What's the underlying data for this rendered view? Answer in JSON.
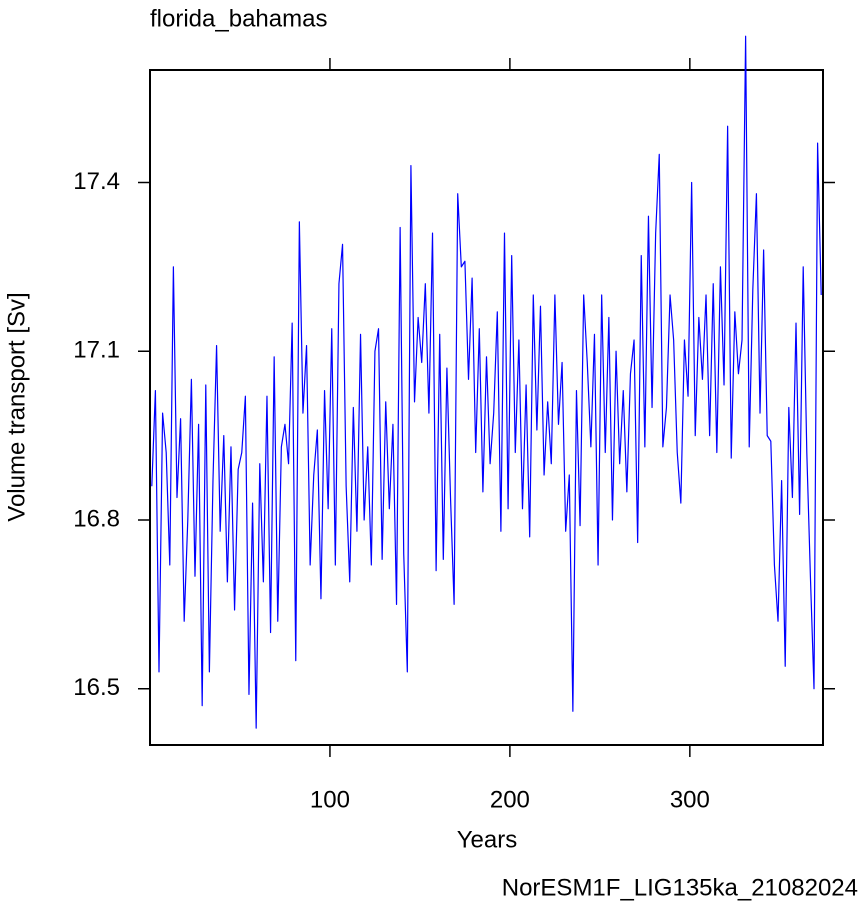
{
  "chart_data": {
    "type": "line",
    "title": "florida_bahamas",
    "x_label": "Years",
    "y_label": "Volume transport [Sv]",
    "annotation": "NorESM1F_LIG135ka_21082024",
    "color": "#0000ff",
    "annotation_color": "#0000ff",
    "xlim": [
      0,
      374
    ],
    "xticks": [
      100,
      200,
      300
    ],
    "ylim": [
      16.4,
      17.6
    ],
    "yticks": [
      16.5,
      16.8,
      17.1,
      17.4
    ],
    "x": [
      1,
      3,
      5,
      7,
      9,
      11,
      13,
      15,
      17,
      19,
      21,
      23,
      25,
      27,
      29,
      31,
      33,
      35,
      37,
      39,
      41,
      43,
      45,
      47,
      49,
      51,
      53,
      55,
      57,
      59,
      61,
      63,
      65,
      67,
      69,
      71,
      73,
      75,
      77,
      79,
      81,
      83,
      85,
      87,
      89,
      91,
      93,
      95,
      97,
      99,
      101,
      103,
      105,
      107,
      109,
      111,
      113,
      115,
      117,
      119,
      121,
      123,
      125,
      127,
      129,
      131,
      133,
      135,
      137,
      139,
      141,
      143,
      145,
      147,
      149,
      151,
      153,
      155,
      157,
      159,
      161,
      163,
      165,
      167,
      169,
      171,
      173,
      175,
      177,
      179,
      181,
      183,
      185,
      187,
      189,
      191,
      193,
      195,
      197,
      199,
      201,
      203,
      205,
      207,
      209,
      211,
      213,
      215,
      217,
      219,
      221,
      223,
      225,
      227,
      229,
      231,
      233,
      235,
      237,
      239,
      241,
      243,
      245,
      247,
      249,
      251,
      253,
      255,
      257,
      259,
      261,
      263,
      265,
      267,
      269,
      271,
      273,
      275,
      277,
      279,
      281,
      283,
      285,
      287,
      289,
      291,
      293,
      295,
      297,
      299,
      301,
      303,
      305,
      307,
      309,
      311,
      313,
      315,
      317,
      319,
      321,
      323,
      325,
      327,
      329,
      331,
      333,
      335,
      337,
      339,
      341,
      343,
      345,
      347,
      349,
      351,
      353,
      355,
      357,
      359,
      361,
      363,
      365,
      367,
      369,
      371,
      373
    ],
    "values": [
      16.86,
      17.03,
      16.53,
      16.99,
      16.92,
      16.72,
      17.25,
      16.84,
      16.98,
      16.62,
      16.8,
      17.05,
      16.7,
      16.97,
      16.47,
      17.04,
      16.53,
      16.87,
      17.11,
      16.78,
      16.95,
      16.69,
      16.93,
      16.64,
      16.89,
      16.92,
      17.02,
      16.49,
      16.83,
      16.43,
      16.9,
      16.69,
      17.02,
      16.6,
      17.09,
      16.62,
      16.93,
      16.97,
      16.9,
      17.15,
      16.55,
      17.33,
      16.99,
      17.11,
      16.72,
      16.88,
      16.96,
      16.66,
      17.03,
      16.82,
      17.14,
      16.72,
      17.22,
      17.29,
      16.86,
      16.69,
      17.0,
      16.78,
      17.13,
      16.8,
      16.93,
      16.72,
      17.1,
      17.14,
      16.73,
      17.01,
      16.82,
      16.97,
      16.65,
      17.32,
      16.74,
      16.53,
      17.43,
      17.01,
      17.16,
      17.08,
      17.22,
      16.99,
      17.31,
      16.71,
      17.13,
      16.73,
      17.07,
      16.84,
      16.65,
      17.38,
      17.25,
      17.26,
      17.05,
      17.23,
      16.92,
      17.14,
      16.85,
      17.09,
      16.9,
      16.99,
      17.17,
      16.78,
      17.31,
      16.82,
      17.27,
      16.92,
      17.12,
      16.82,
      17.04,
      16.77,
      17.2,
      16.96,
      17.18,
      16.88,
      17.01,
      16.9,
      17.2,
      16.97,
      17.08,
      16.78,
      16.88,
      16.46,
      17.03,
      16.79,
      17.2,
      17.08,
      16.93,
      17.13,
      16.72,
      17.2,
      16.92,
      17.16,
      16.8,
      17.1,
      16.9,
      17.03,
      16.85,
      17.06,
      17.12,
      16.76,
      17.27,
      16.93,
      17.34,
      17.0,
      17.31,
      17.45,
      16.93,
      17.0,
      17.2,
      17.12,
      16.92,
      16.83,
      17.12,
      17.02,
      17.4,
      16.95,
      17.16,
      17.05,
      17.2,
      16.95,
      17.22,
      16.92,
      17.25,
      17.04,
      17.5,
      16.91,
      17.17,
      17.06,
      17.12,
      17.66,
      16.93,
      17.21,
      17.38,
      16.99,
      17.28,
      16.95,
      16.94,
      16.72,
      16.62,
      16.87,
      16.54,
      17.0,
      16.84,
      17.15,
      16.81,
      17.25,
      16.92,
      16.7,
      16.5,
      17.47,
      17.2
    ]
  }
}
